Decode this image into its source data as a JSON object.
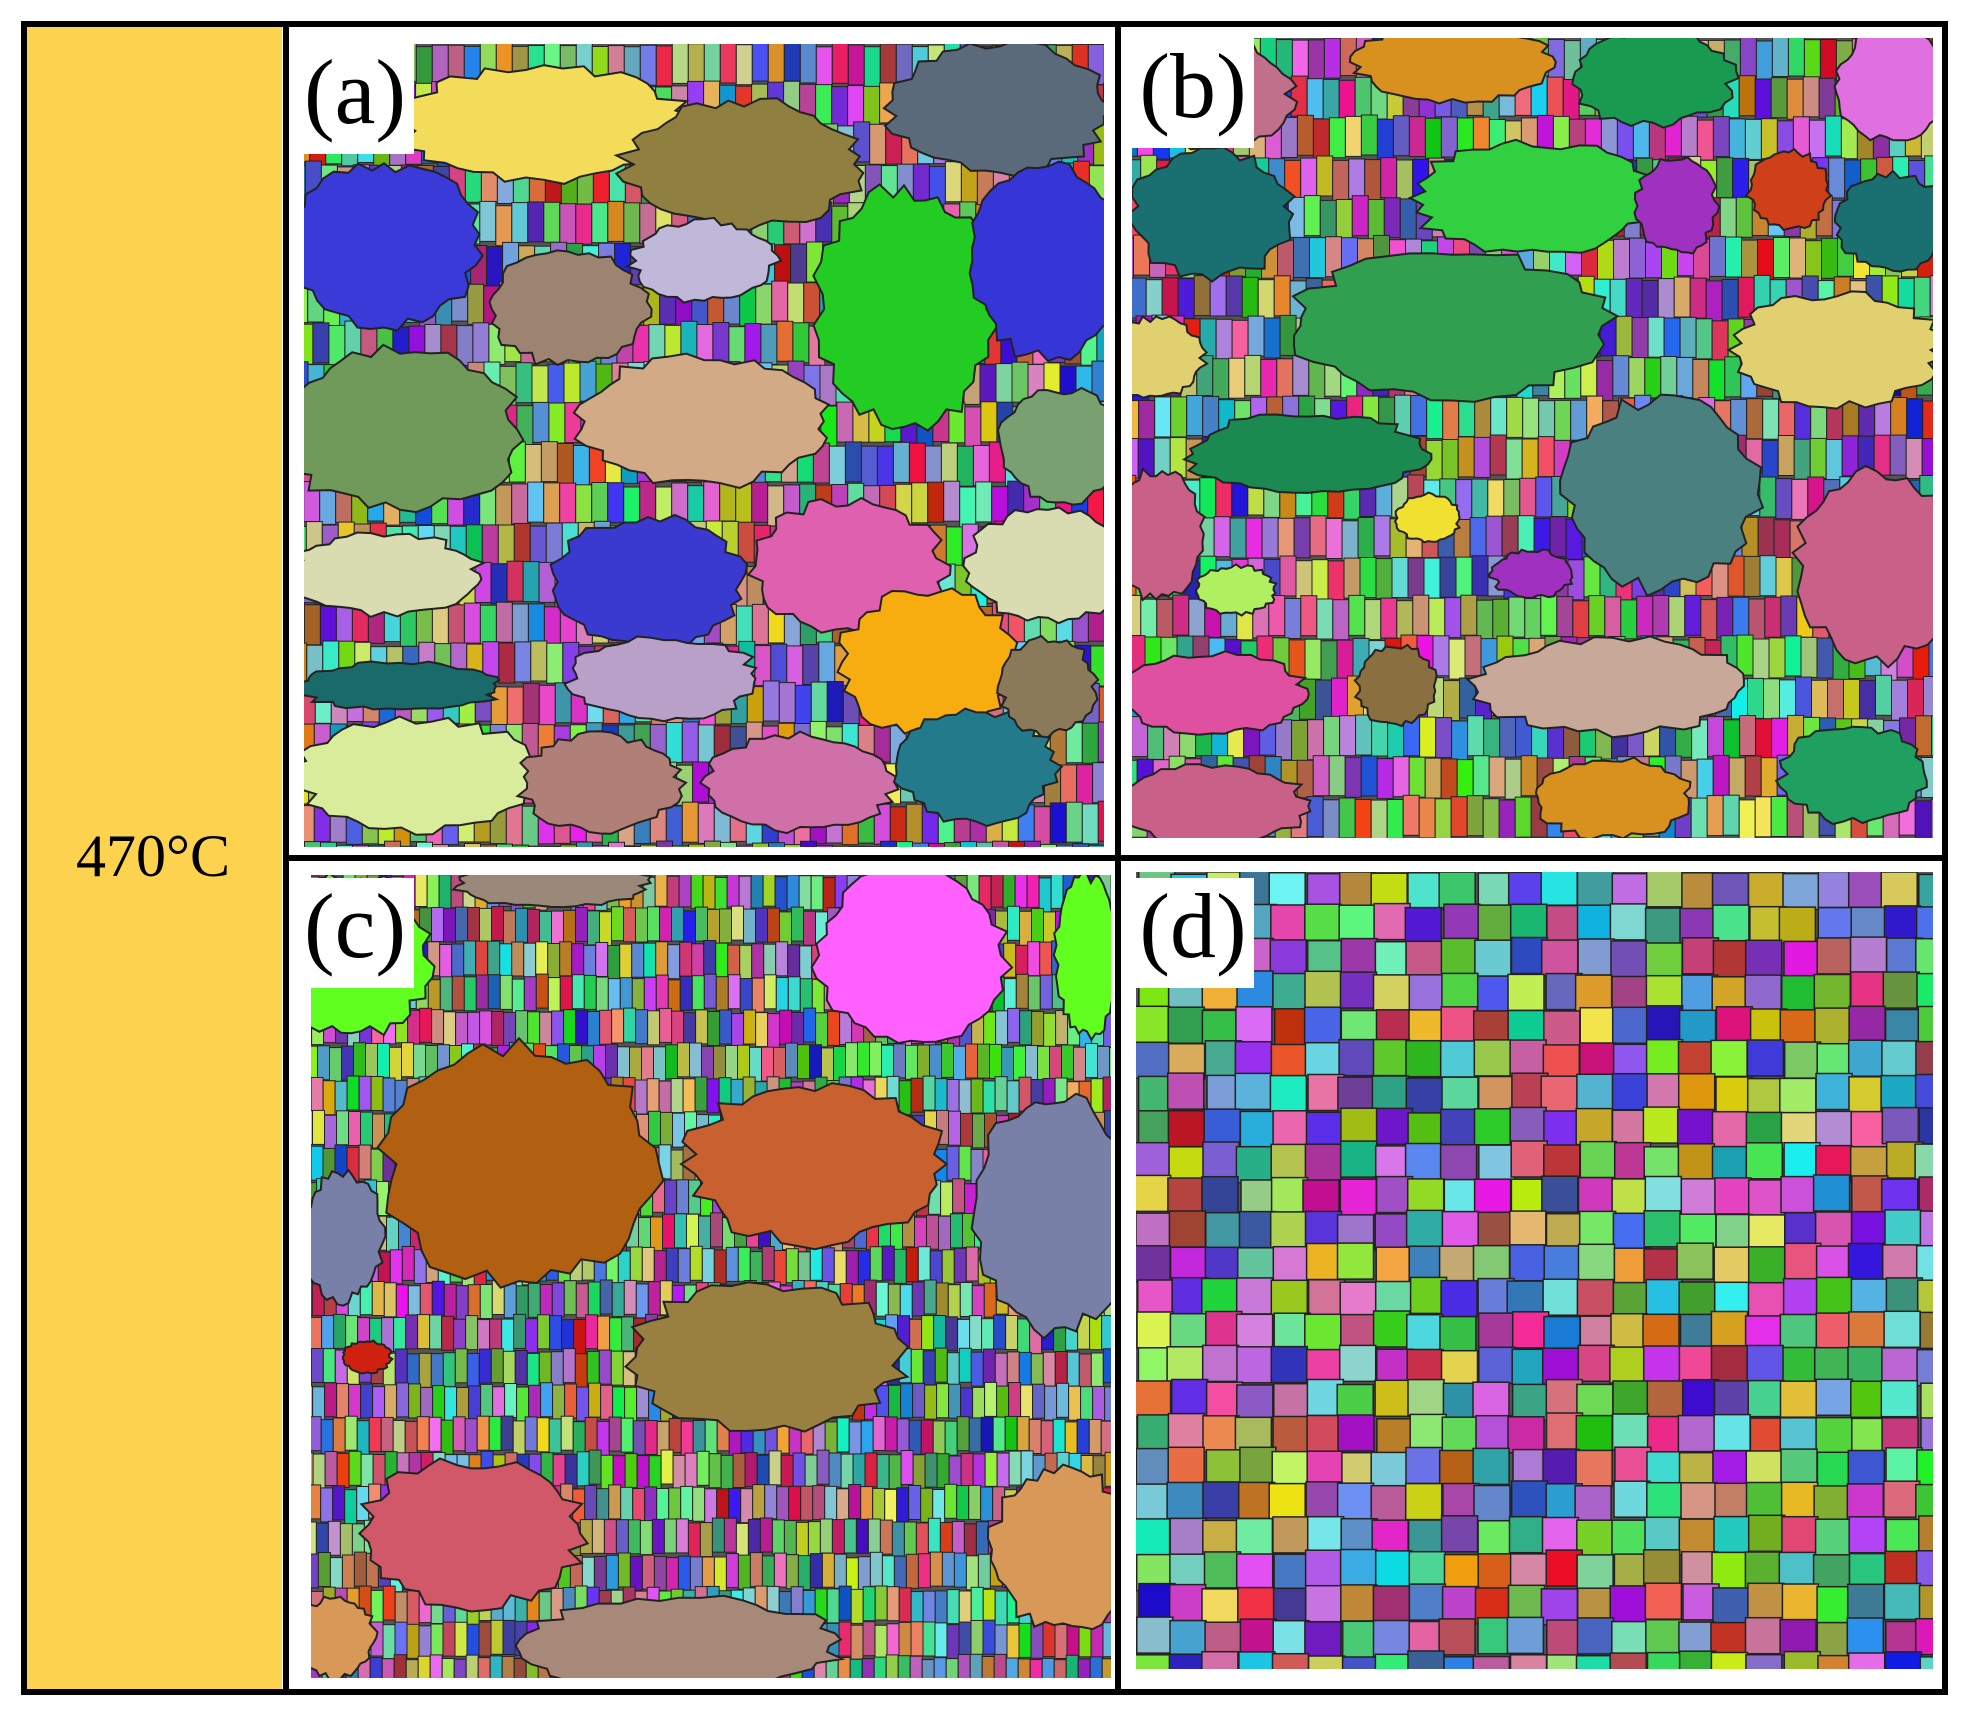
{
  "row_label": "470°C",
  "panels": [
    {
      "label": "(a)"
    },
    {
      "label": "(b)"
    },
    {
      "label": "(c)"
    },
    {
      "label": "(d)"
    }
  ]
}
